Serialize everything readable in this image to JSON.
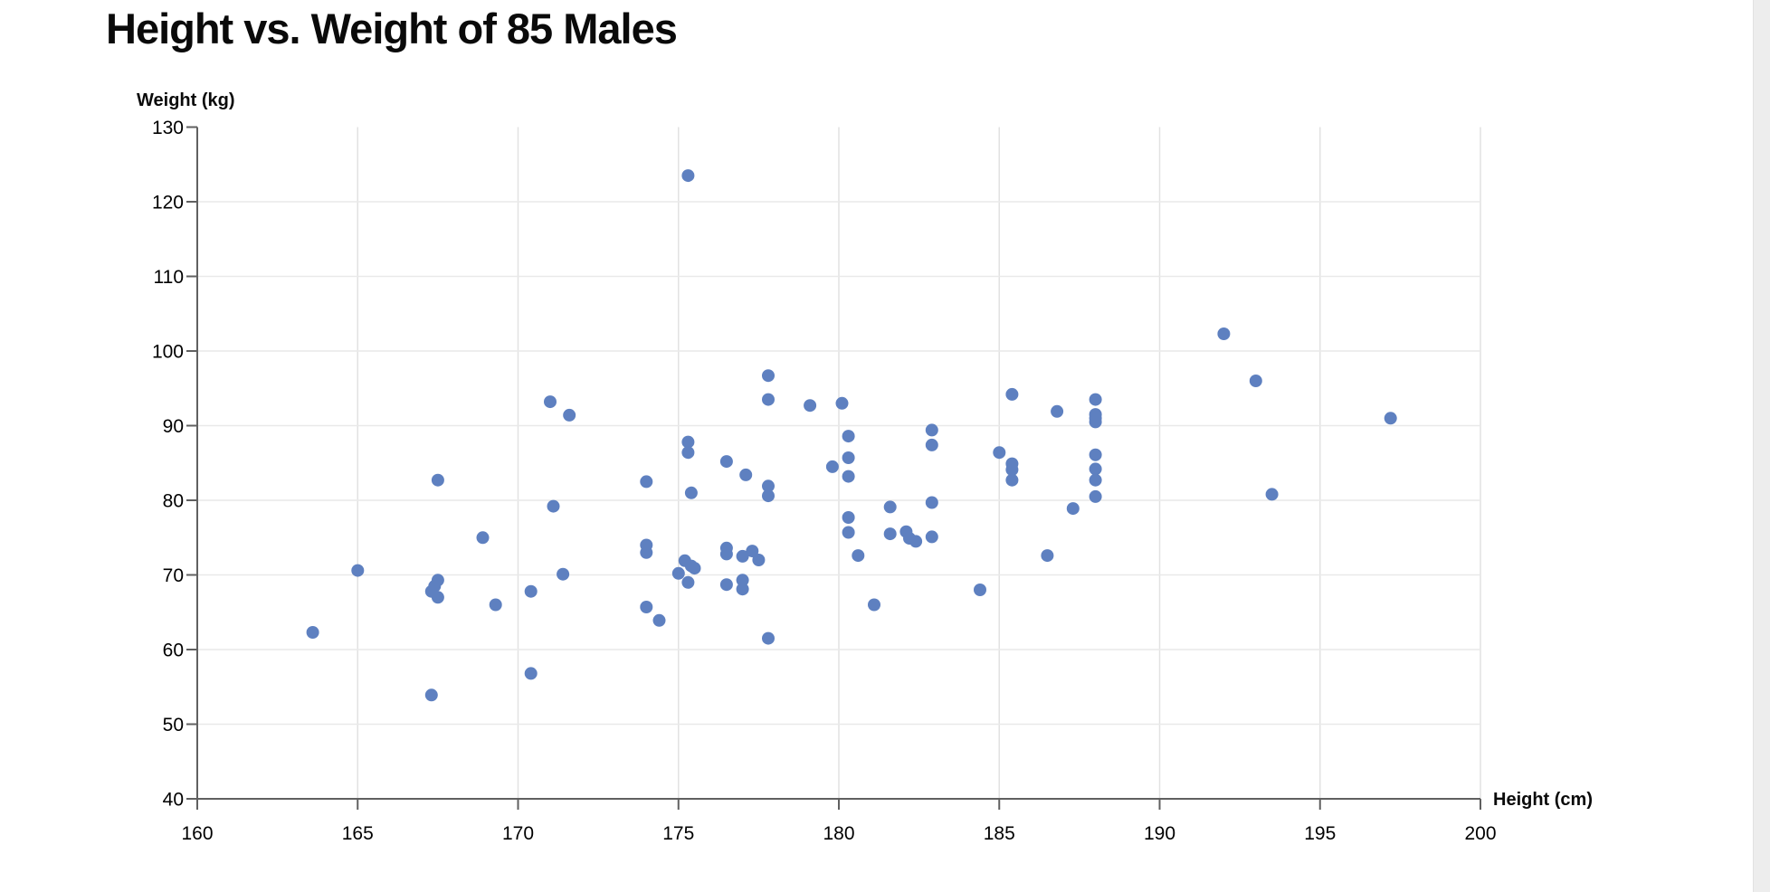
{
  "title": "Height vs. Weight of 85 Males",
  "chart_data": {
    "type": "scatter",
    "title": "Height vs. Weight of 85 Males",
    "xlabel": "Height (cm)",
    "ylabel": "Weight (kg)",
    "xlim": [
      160,
      200
    ],
    "ylim": [
      40,
      130
    ],
    "x_ticks": [
      160,
      165,
      170,
      175,
      180,
      185,
      190,
      195,
      200
    ],
    "y_ticks": [
      40,
      50,
      60,
      70,
      80,
      90,
      100,
      110,
      120,
      130
    ],
    "grid": true,
    "legend": false,
    "marker_color": "#5e80c0",
    "axis_color": "#606060",
    "grid_color_vertical": "#e2e2e2",
    "grid_color_horizontal": "#e9e9e9",
    "points": [
      [
        163.6,
        62.3
      ],
      [
        165.0,
        70.6
      ],
      [
        167.3,
        67.8
      ],
      [
        167.4,
        68.5
      ],
      [
        167.5,
        82.7
      ],
      [
        167.5,
        69.3
      ],
      [
        167.5,
        67.0
      ],
      [
        167.3,
        53.9
      ],
      [
        168.9,
        75.0
      ],
      [
        169.3,
        66.0
      ],
      [
        170.4,
        67.8
      ],
      [
        170.4,
        56.8
      ],
      [
        171.0,
        93.2
      ],
      [
        171.6,
        91.4
      ],
      [
        171.1,
        79.2
      ],
      [
        171.4,
        70.1
      ],
      [
        174.0,
        82.5
      ],
      [
        174.0,
        74.0
      ],
      [
        174.0,
        73.0
      ],
      [
        174.0,
        65.7
      ],
      [
        174.4,
        63.9
      ],
      [
        175.3,
        123.5
      ],
      [
        175.3,
        87.8
      ],
      [
        175.3,
        86.4
      ],
      [
        175.4,
        81.0
      ],
      [
        175.2,
        71.9
      ],
      [
        175.4,
        71.2
      ],
      [
        175.5,
        70.9
      ],
      [
        175.0,
        70.2
      ],
      [
        175.3,
        69.0
      ],
      [
        176.5,
        85.2
      ],
      [
        176.5,
        73.6
      ],
      [
        176.5,
        72.8
      ],
      [
        176.5,
        68.7
      ],
      [
        177.1,
        83.4
      ],
      [
        177.0,
        72.5
      ],
      [
        177.3,
        73.2
      ],
      [
        177.5,
        72.0
      ],
      [
        177.0,
        69.3
      ],
      [
        177.0,
        68.1
      ],
      [
        177.8,
        96.7
      ],
      [
        177.8,
        93.5
      ],
      [
        177.8,
        81.9
      ],
      [
        177.8,
        80.6
      ],
      [
        177.8,
        61.5
      ],
      [
        179.1,
        92.7
      ],
      [
        179.8,
        84.5
      ],
      [
        180.1,
        93.0
      ],
      [
        180.3,
        88.6
      ],
      [
        180.3,
        85.7
      ],
      [
        180.3,
        83.2
      ],
      [
        180.3,
        77.7
      ],
      [
        180.3,
        75.7
      ],
      [
        180.6,
        72.6
      ],
      [
        181.1,
        66.0
      ],
      [
        181.6,
        79.1
      ],
      [
        181.6,
        75.5
      ],
      [
        182.1,
        75.8
      ],
      [
        182.2,
        74.9
      ],
      [
        182.4,
        74.5
      ],
      [
        182.9,
        89.4
      ],
      [
        182.9,
        87.4
      ],
      [
        182.9,
        79.7
      ],
      [
        182.9,
        75.1
      ],
      [
        184.4,
        68.0
      ],
      [
        185.0,
        86.4
      ],
      [
        185.4,
        94.2
      ],
      [
        185.4,
        84.9
      ],
      [
        185.4,
        84.1
      ],
      [
        185.4,
        82.7
      ],
      [
        186.5,
        72.6
      ],
      [
        186.8,
        91.9
      ],
      [
        187.3,
        78.9
      ],
      [
        188.0,
        93.5
      ],
      [
        188.0,
        91.5
      ],
      [
        188.0,
        91.0
      ],
      [
        188.0,
        90.5
      ],
      [
        188.0,
        86.1
      ],
      [
        188.0,
        84.2
      ],
      [
        188.0,
        82.7
      ],
      [
        188.0,
        80.5
      ],
      [
        192.0,
        102.3
      ],
      [
        193.0,
        96.0
      ],
      [
        193.5,
        80.8
      ],
      [
        197.2,
        91.0
      ]
    ]
  }
}
